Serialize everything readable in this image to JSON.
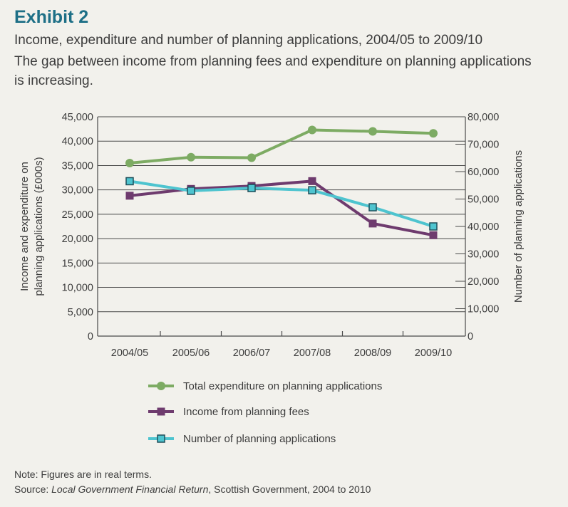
{
  "header": {
    "exhibit": "Exhibit 2",
    "title": "Income, expenditure and number of planning applications, 2004/05 to 2009/10",
    "subtitle": "The gap between income from planning fees and expenditure on planning applications is increasing."
  },
  "footer": {
    "note": "Note: Figures are in real terms.",
    "source_prefix": "Source: ",
    "source_italic": "Local Government Financial Return",
    "source_rest": ", Scottish Government, 2004 to 2010"
  },
  "colors": {
    "expenditure": "#7dab63",
    "income": "#6e3b6e",
    "applications": "#4ec4cf",
    "grid": "#4a4a4a",
    "title_accent": "#1d6f86"
  },
  "chart_data": {
    "type": "line",
    "categories": [
      "2004/05",
      "2005/06",
      "2006/07",
      "2007/08",
      "2008/09",
      "2009/10"
    ],
    "ylabel": "Income and expenditure on planning applications (£000s)",
    "y2label": "Number of planning applications",
    "ylim": [
      0,
      45000
    ],
    "y2lim": [
      0,
      80000
    ],
    "yticks": [
      "0",
      "5,000",
      "10,000",
      "15,000",
      "20,000",
      "25,000",
      "30,000",
      "35,000",
      "40,000",
      "45,000"
    ],
    "y2ticks": [
      "0",
      "10,000",
      "20,000",
      "30,000",
      "40,000",
      "50,000",
      "60,000",
      "70,000",
      "80,000"
    ],
    "grid": true,
    "legend_position": "bottom",
    "series": [
      {
        "name": "Total expenditure on planning applications",
        "axis": "left",
        "marker": "circle",
        "color": "#7dab63",
        "values": [
          35500,
          36700,
          36600,
          42300,
          42000,
          41600
        ]
      },
      {
        "name": "Income from planning fees",
        "axis": "left",
        "marker": "square",
        "color": "#6e3b6e",
        "values": [
          28800,
          30200,
          30800,
          31800,
          23100,
          20700
        ]
      },
      {
        "name": "Number of planning applications",
        "axis": "right",
        "marker": "square-outlined",
        "color": "#4ec4cf",
        "values": [
          56500,
          53000,
          54000,
          53200,
          47000,
          40000
        ]
      }
    ]
  }
}
